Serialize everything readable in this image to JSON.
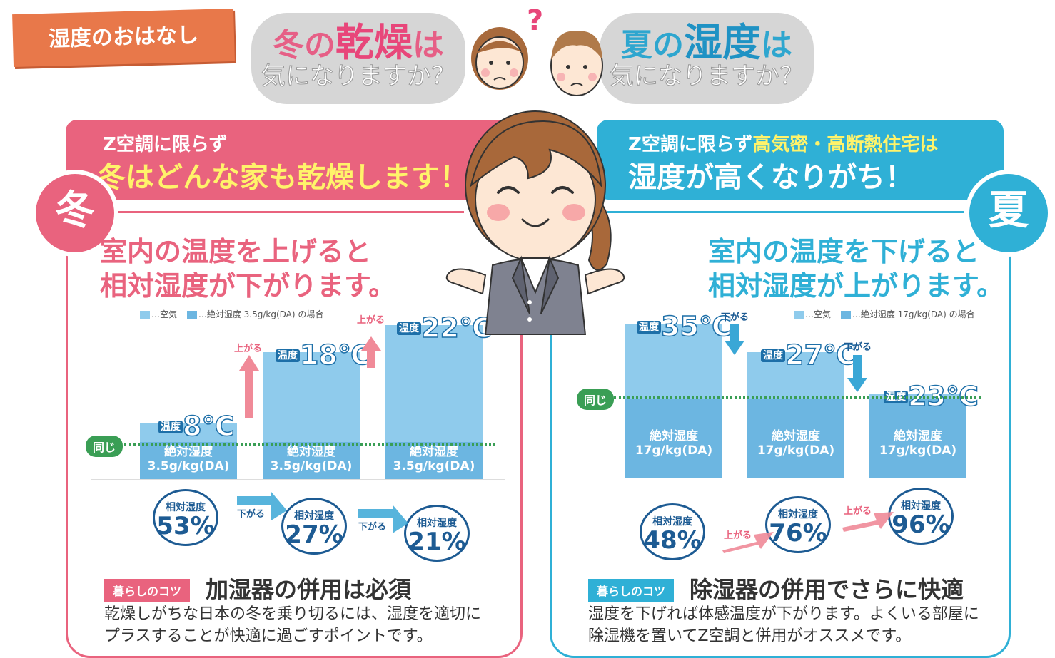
{
  "badge": "湿度のおはなし",
  "cloud_left": {
    "pre": "冬の",
    "em": "乾燥",
    "post": "は",
    "line2": "気になりますか？"
  },
  "cloud_right": {
    "pre": "夏の",
    "em": "湿度",
    "post": "は",
    "line2": "気になりますか？"
  },
  "question_mark": "?",
  "winter": {
    "banner_line1": "Z空調に限らず",
    "banner_line2": "冬はどんな家も乾燥します！",
    "season": "冬",
    "headline_l1": "室内の温度を上げると",
    "headline_l2": "相対湿度が下がります。",
    "legend_air": "…空気",
    "legend_abs": "…絶対湿度 3.5g/kg(DA) の場合",
    "same_label": "同じ",
    "temp_key": "温度",
    "rh_key": "相対湿度",
    "bars": [
      {
        "temp": "8℃",
        "abs_l1": "絶対湿度",
        "abs_l2": "3.5g/kg(DA)",
        "rh": "53%"
      },
      {
        "temp": "18℃",
        "abs_l1": "絶対湿度",
        "abs_l2": "3.5g/kg(DA)",
        "rh": "27%"
      },
      {
        "temp": "22℃",
        "abs_l1": "絶対湿度",
        "abs_l2": "3.5g/kg(DA)",
        "rh": "21%"
      }
    ],
    "up_label": "上がる",
    "down_label": "下がる",
    "tips_tag": "暮らしのコツ",
    "tips_title": "加湿器の併用は必須",
    "tips_body_l1": "乾燥しがちな日本の冬を乗り切るには、湿度を適切に",
    "tips_body_l2": "プラスすることが快適に過ごすポイントです。"
  },
  "summer": {
    "banner_line1_a": "Z空調に限らず",
    "banner_line1_b": "高気密・高断熱住宅は",
    "banner_line2": "湿度が高くなりがち！",
    "season": "夏",
    "headline_l1": "室内の温度を下げると",
    "headline_l2": "相対湿度が上がります。",
    "legend_air": "…空気",
    "legend_abs": "…絶対湿度 17g/kg(DA) の場合",
    "same_label": "同じ",
    "temp_key": "温度",
    "rh_key": "相対湿度",
    "bars": [
      {
        "temp": "35℃",
        "abs_l1": "絶対湿度",
        "abs_l2": "17g/kg(DA)",
        "rh": "48%"
      },
      {
        "temp": "27℃",
        "abs_l1": "絶対湿度",
        "abs_l2": "17g/kg(DA)",
        "rh": "76%"
      },
      {
        "temp": "23℃",
        "abs_l1": "絶対湿度",
        "abs_l2": "17g/kg(DA)",
        "rh": "96%"
      }
    ],
    "up_label": "上がる",
    "down_label": "下がる",
    "tips_tag": "暮らしのコツ",
    "tips_title": "除湿器の併用でさらに快適",
    "tips_body_l1": "湿度を下げれば体感温度が下がります。よくいる部屋に",
    "tips_body_l2": "除湿機を置いてZ空調と併用がオススメです。"
  },
  "colors": {
    "winter": "#e9637e",
    "summer": "#2fb0d6",
    "bar": "#8fcbec",
    "bar_dark": "#6cb6e1",
    "green": "#3a9e55"
  }
}
